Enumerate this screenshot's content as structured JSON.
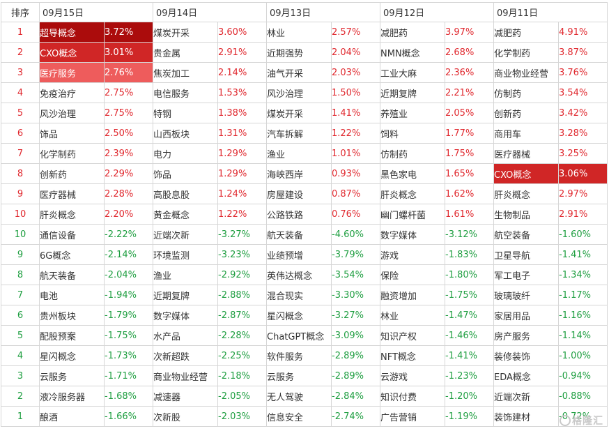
{
  "header": {
    "rank_label": "排序",
    "dates": [
      "09月15日",
      "09月14日",
      "09月13日",
      "09月12日",
      "09月11日"
    ]
  },
  "rows": [
    {
      "rank": "1",
      "trend": "up",
      "cells": [
        {
          "name": "超导概念",
          "pct": "3.72%",
          "hl": "hl1"
        },
        {
          "name": "煤炭开采",
          "pct": "3.60%"
        },
        {
          "name": "林业",
          "pct": "2.57%"
        },
        {
          "name": "减肥药",
          "pct": "3.97%"
        },
        {
          "name": "减肥药",
          "pct": "4.91%"
        }
      ]
    },
    {
      "rank": "2",
      "trend": "up",
      "cells": [
        {
          "name": "CXO概念",
          "pct": "3.01%",
          "hl": "hl2"
        },
        {
          "name": "贵金属",
          "pct": "2.91%"
        },
        {
          "name": "近期强势",
          "pct": "2.04%"
        },
        {
          "name": "NMN概念",
          "pct": "2.68%"
        },
        {
          "name": "化学制药",
          "pct": "3.87%"
        }
      ]
    },
    {
      "rank": "3",
      "trend": "up",
      "cells": [
        {
          "name": "医疗服务",
          "pct": "2.76%",
          "hl": "hl3"
        },
        {
          "name": "焦炭加工",
          "pct": "2.14%"
        },
        {
          "name": "油气开采",
          "pct": "2.03%"
        },
        {
          "name": "工业大麻",
          "pct": "2.36%"
        },
        {
          "name": "商业物业经营",
          "pct": "3.76%"
        }
      ]
    },
    {
      "rank": "4",
      "trend": "up",
      "cells": [
        {
          "name": "免疫治疗",
          "pct": "2.75%"
        },
        {
          "name": "电信服务",
          "pct": "1.53%"
        },
        {
          "name": "风沙治理",
          "pct": "1.50%"
        },
        {
          "name": "近期复牌",
          "pct": "2.21%"
        },
        {
          "name": "仿制药",
          "pct": "3.54%"
        }
      ]
    },
    {
      "rank": "5",
      "trend": "up",
      "cells": [
        {
          "name": "风沙治理",
          "pct": "2.75%"
        },
        {
          "name": "特钢",
          "pct": "1.38%"
        },
        {
          "name": "煤炭开采",
          "pct": "1.41%"
        },
        {
          "name": "养殖业",
          "pct": "2.05%"
        },
        {
          "name": "创新药",
          "pct": "3.42%"
        }
      ]
    },
    {
      "rank": "6",
      "trend": "up",
      "cells": [
        {
          "name": "饰品",
          "pct": "2.50%"
        },
        {
          "name": "山西板块",
          "pct": "1.31%"
        },
        {
          "name": "汽车拆解",
          "pct": "1.22%"
        },
        {
          "name": "饲料",
          "pct": "1.77%"
        },
        {
          "name": "商用车",
          "pct": "3.28%"
        }
      ]
    },
    {
      "rank": "7",
      "trend": "up",
      "cells": [
        {
          "name": "化学制药",
          "pct": "2.39%"
        },
        {
          "name": "电力",
          "pct": "1.29%"
        },
        {
          "name": "渔业",
          "pct": "1.01%"
        },
        {
          "name": "仿制药",
          "pct": "1.75%"
        },
        {
          "name": "医疗器械",
          "pct": "3.25%"
        }
      ]
    },
    {
      "rank": "8",
      "trend": "up",
      "cells": [
        {
          "name": "创新药",
          "pct": "2.29%"
        },
        {
          "name": "饰品",
          "pct": "1.29%"
        },
        {
          "name": "海峡西岸",
          "pct": "0.93%"
        },
        {
          "name": "黑色家电",
          "pct": "1.65%"
        },
        {
          "name": "CXO概念",
          "pct": "3.06%",
          "hl": "hl2"
        }
      ]
    },
    {
      "rank": "9",
      "trend": "up",
      "cells": [
        {
          "name": "医疗器械",
          "pct": "2.28%"
        },
        {
          "name": "高股息股",
          "pct": "1.24%"
        },
        {
          "name": "房屋建设",
          "pct": "0.87%"
        },
        {
          "name": "肝炎概念",
          "pct": "1.62%"
        },
        {
          "name": "肝炎概念",
          "pct": "2.97%"
        }
      ]
    },
    {
      "rank": "10",
      "trend": "up",
      "cells": [
        {
          "name": "肝炎概念",
          "pct": "2.20%"
        },
        {
          "name": "黄金概念",
          "pct": "1.22%"
        },
        {
          "name": "公路铁路",
          "pct": "0.76%"
        },
        {
          "name": "幽门螺杆菌",
          "pct": "1.61%"
        },
        {
          "name": "生物制品",
          "pct": "2.91%"
        }
      ]
    },
    {
      "rank": "10",
      "trend": "down",
      "cells": [
        {
          "name": "通信设备",
          "pct": "-2.22%"
        },
        {
          "name": "近端次新",
          "pct": "-3.27%"
        },
        {
          "name": "航天装备",
          "pct": "-4.60%"
        },
        {
          "name": "数字媒体",
          "pct": "-3.12%"
        },
        {
          "name": "航空装备",
          "pct": "-1.60%"
        }
      ]
    },
    {
      "rank": "9",
      "trend": "down",
      "cells": [
        {
          "name": "6G概念",
          "pct": "-2.14%"
        },
        {
          "name": "环境监测",
          "pct": "-3.23%"
        },
        {
          "name": "业绩预增",
          "pct": "-3.79%"
        },
        {
          "name": "游戏",
          "pct": "-1.83%"
        },
        {
          "name": "卫星导航",
          "pct": "-1.41%"
        }
      ]
    },
    {
      "rank": "8",
      "trend": "down",
      "cells": [
        {
          "name": "航天装备",
          "pct": "-2.04%"
        },
        {
          "name": "渔业",
          "pct": "-2.92%"
        },
        {
          "name": "英伟达概念",
          "pct": "-3.54%"
        },
        {
          "name": "保险",
          "pct": "-1.80%"
        },
        {
          "name": "军工电子",
          "pct": "-1.34%"
        }
      ]
    },
    {
      "rank": "7",
      "trend": "down",
      "cells": [
        {
          "name": "电池",
          "pct": "-1.94%"
        },
        {
          "name": "近期复牌",
          "pct": "-2.88%"
        },
        {
          "name": "混合现实",
          "pct": "-3.30%"
        },
        {
          "name": "融资增加",
          "pct": "-1.75%"
        },
        {
          "name": "玻璃玻纤",
          "pct": "-1.17%"
        }
      ]
    },
    {
      "rank": "6",
      "trend": "down",
      "cells": [
        {
          "name": "贵州板块",
          "pct": "-1.79%"
        },
        {
          "name": "数字媒体",
          "pct": "-2.87%"
        },
        {
          "name": "星闪概念",
          "pct": "-3.27%"
        },
        {
          "name": "林业",
          "pct": "-1.47%"
        },
        {
          "name": "家居用品",
          "pct": "-1.16%"
        }
      ]
    },
    {
      "rank": "5",
      "trend": "down",
      "cells": [
        {
          "name": "配股预案",
          "pct": "-1.75%"
        },
        {
          "name": "水产品",
          "pct": "-2.28%"
        },
        {
          "name": "ChatGPT概念",
          "pct": "-3.09%"
        },
        {
          "name": "知识产权",
          "pct": "-1.46%"
        },
        {
          "name": "房产服务",
          "pct": "-1.14%"
        }
      ]
    },
    {
      "rank": "4",
      "trend": "down",
      "cells": [
        {
          "name": "星闪概念",
          "pct": "-1.73%"
        },
        {
          "name": "次新超跌",
          "pct": "-2.25%"
        },
        {
          "name": "软件服务",
          "pct": "-2.89%"
        },
        {
          "name": "NFT概念",
          "pct": "-1.41%"
        },
        {
          "name": "装修装饰",
          "pct": "-1.00%"
        }
      ]
    },
    {
      "rank": "3",
      "trend": "down",
      "cells": [
        {
          "name": "云服务",
          "pct": "-1.71%"
        },
        {
          "name": "商业物业经营",
          "pct": "-2.18%"
        },
        {
          "name": "云服务",
          "pct": "-2.89%"
        },
        {
          "name": "云游戏",
          "pct": "-1.23%"
        },
        {
          "name": "EDA概念",
          "pct": "-0.94%"
        }
      ]
    },
    {
      "rank": "2",
      "trend": "down",
      "cells": [
        {
          "name": "液冷服务器",
          "pct": "-1.68%"
        },
        {
          "name": "减速器",
          "pct": "-2.05%"
        },
        {
          "name": "无人驾驶",
          "pct": "-2.84%"
        },
        {
          "name": "知识付费",
          "pct": "-1.20%"
        },
        {
          "name": "近端次新",
          "pct": "-0.88%"
        }
      ]
    },
    {
      "rank": "1",
      "trend": "down",
      "cells": [
        {
          "name": "酿酒",
          "pct": "-1.66%"
        },
        {
          "name": "次新股",
          "pct": "-2.03%"
        },
        {
          "name": "信息安全",
          "pct": "-2.74%"
        },
        {
          "name": "广告营销",
          "pct": "-1.19%"
        },
        {
          "name": "装饰建材",
          "pct": "-0.72%"
        }
      ]
    }
  ],
  "watermark": {
    "text": "格隆汇",
    "icon": "logo-circle-icon"
  },
  "colors": {
    "up": "#e0282e",
    "down": "#1e9e40",
    "hl1": "#ab0c0c",
    "hl2": "#d02626",
    "hl3": "#ee5c5c"
  }
}
